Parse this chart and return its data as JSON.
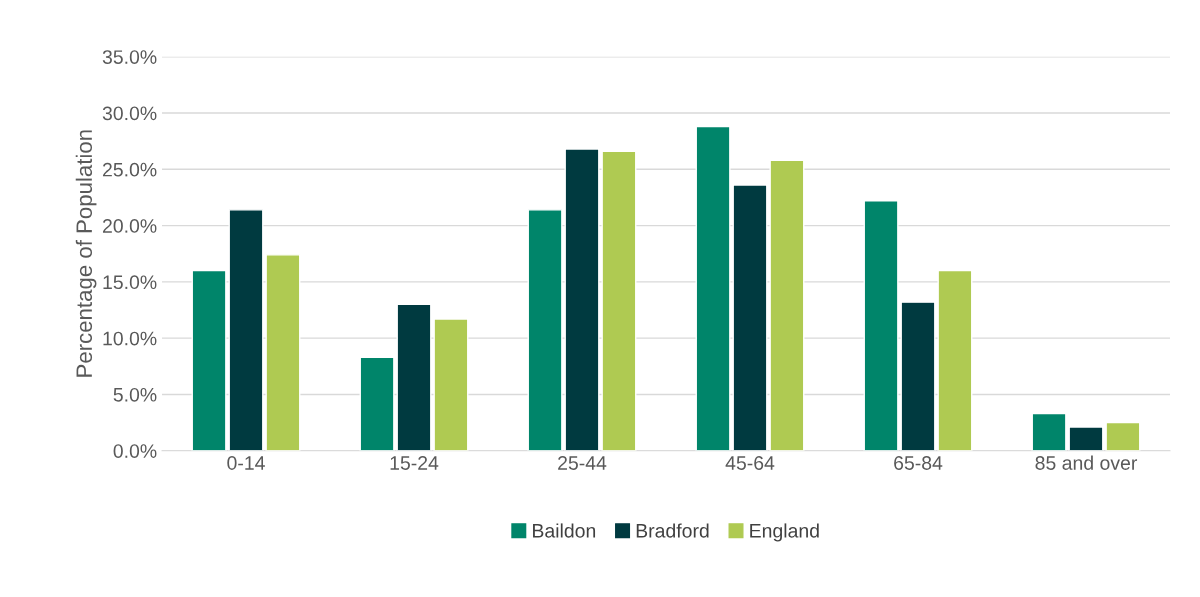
{
  "chart_data": {
    "type": "bar",
    "ylabel": "Percentage of Population",
    "categories": [
      "0-14",
      "15-24",
      "25-44",
      "45-64",
      "65-84",
      "85 and over"
    ],
    "series": [
      {
        "name": "Baildon",
        "color": "#00856a",
        "values": [
          16.0,
          8.3,
          21.4,
          28.8,
          22.2,
          3.3
        ]
      },
      {
        "name": "Bradford",
        "color": "#003a40",
        "values": [
          21.4,
          13.0,
          26.8,
          23.6,
          13.2,
          2.1
        ]
      },
      {
        "name": "England",
        "color": "#afca52",
        "values": [
          17.4,
          11.7,
          26.6,
          25.8,
          16.0,
          2.5
        ]
      }
    ],
    "ylim": [
      0,
      35
    ],
    "yticks": [
      {
        "value": 0,
        "label": "0.0%"
      },
      {
        "value": 5,
        "label": "5.0%"
      },
      {
        "value": 10,
        "label": "10.0%"
      },
      {
        "value": 15,
        "label": "15.0%"
      },
      {
        "value": 20,
        "label": "20.0%"
      },
      {
        "value": 25,
        "label": "25.0%"
      },
      {
        "value": 30,
        "label": "30.0%"
      },
      {
        "value": 35,
        "label": "35.0%"
      }
    ],
    "grid": "y",
    "legend": "bottom"
  }
}
